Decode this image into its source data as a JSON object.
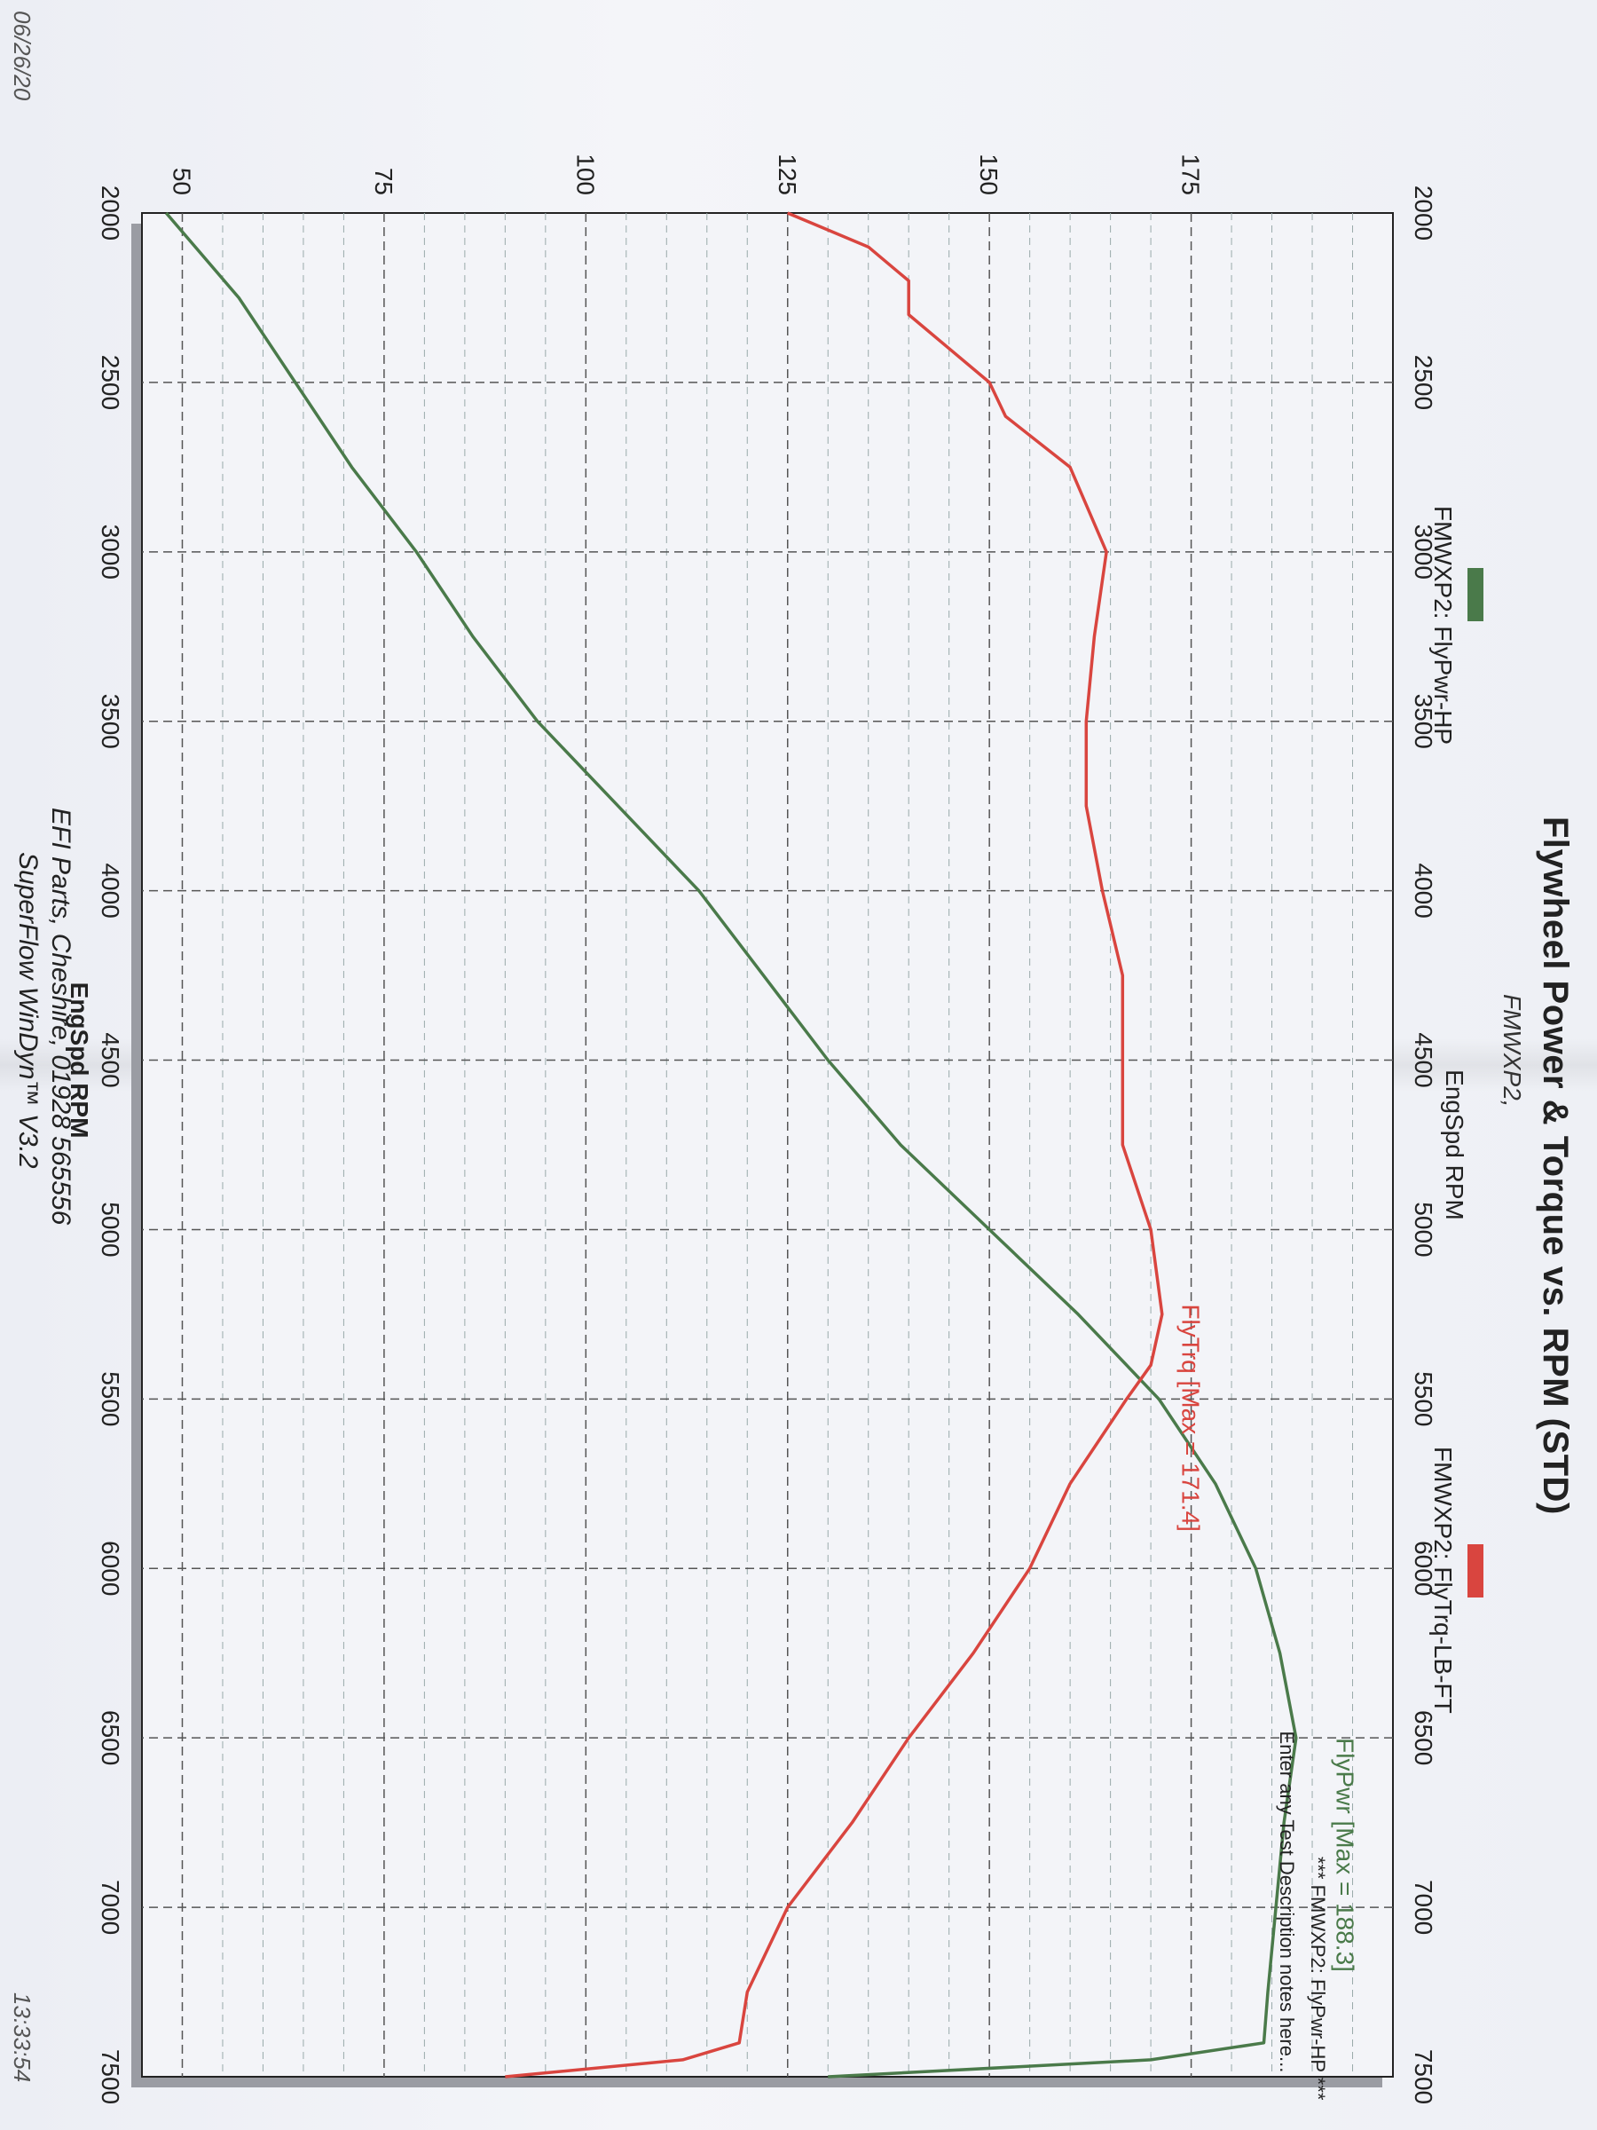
{
  "header": {
    "title": "Flywheel Power & Torque vs. RPM (STD)",
    "subtitle": "FMWXP2,"
  },
  "legend": {
    "power_label": "FMWXP2: FlyPwr-HP",
    "torque_label": "FMWXP2: FlyTrq-LB-FT",
    "power_color": "#4a7a4a",
    "torque_color": "#d9453f"
  },
  "annotations": {
    "power_max": "FlyPwr [Max = 188.3]",
    "torque_max": "FlyTrq [Max = 171.4]",
    "note_line1": "*** FMWXP2: FlyPwr-HP ***",
    "note_line2": "Enter any Test Description notes here..."
  },
  "footer": {
    "line1": "EFI Parts, Cheshire, 01928 565556",
    "line2": "SuperFlow WinDyn™ V3.2"
  },
  "stamps": {
    "date": "06/26/20",
    "time": "13:33:54"
  },
  "chart_data": {
    "type": "line",
    "xlabel": "EngSpd RPM",
    "ylabel": "",
    "xlim": [
      2000,
      7500
    ],
    "ylim": [
      45,
      200
    ],
    "x_ticks": [
      "2000",
      "2500",
      "3000",
      "3500",
      "4000",
      "4500",
      "5000",
      "5500",
      "6000",
      "6500",
      "7000",
      "7500"
    ],
    "y_ticks": [
      "50",
      "75",
      "100",
      "125",
      "150",
      "175"
    ],
    "grid": true,
    "series": [
      {
        "name": "FMWXP2: FlyPwr-HP",
        "color": "#4a7a4a",
        "x": [
          2000,
          2250,
          2500,
          2750,
          3000,
          3250,
          3500,
          3750,
          4000,
          4250,
          4500,
          4750,
          5000,
          5250,
          5500,
          5750,
          6000,
          6250,
          6500,
          6750,
          7000,
          7250,
          7400,
          7450,
          7500
        ],
        "y": [
          48,
          57,
          64,
          71,
          79,
          86,
          94,
          104,
          114,
          122,
          130,
          139,
          150,
          161,
          171,
          178,
          183,
          186,
          188,
          186.5,
          185.5,
          184.5,
          184,
          170,
          130
        ]
      },
      {
        "name": "FMWXP2: FlyTrq-LB-FT",
        "color": "#d9453f",
        "x": [
          2000,
          2100,
          2200,
          2300,
          2400,
          2500,
          2600,
          2750,
          3000,
          3250,
          3500,
          3750,
          4000,
          4250,
          4500,
          4750,
          5000,
          5250,
          5400,
          5500,
          5750,
          6000,
          6250,
          6500,
          6750,
          7000,
          7250,
          7400,
          7450,
          7500
        ],
        "y": [
          125,
          135,
          140,
          140,
          145,
          150,
          152,
          160,
          164.5,
          163,
          162,
          162,
          164,
          166.5,
          166.5,
          166.5,
          170,
          171.4,
          170,
          167,
          160,
          155,
          148,
          140,
          133,
          125,
          120,
          119,
          112,
          90
        ]
      }
    ]
  }
}
